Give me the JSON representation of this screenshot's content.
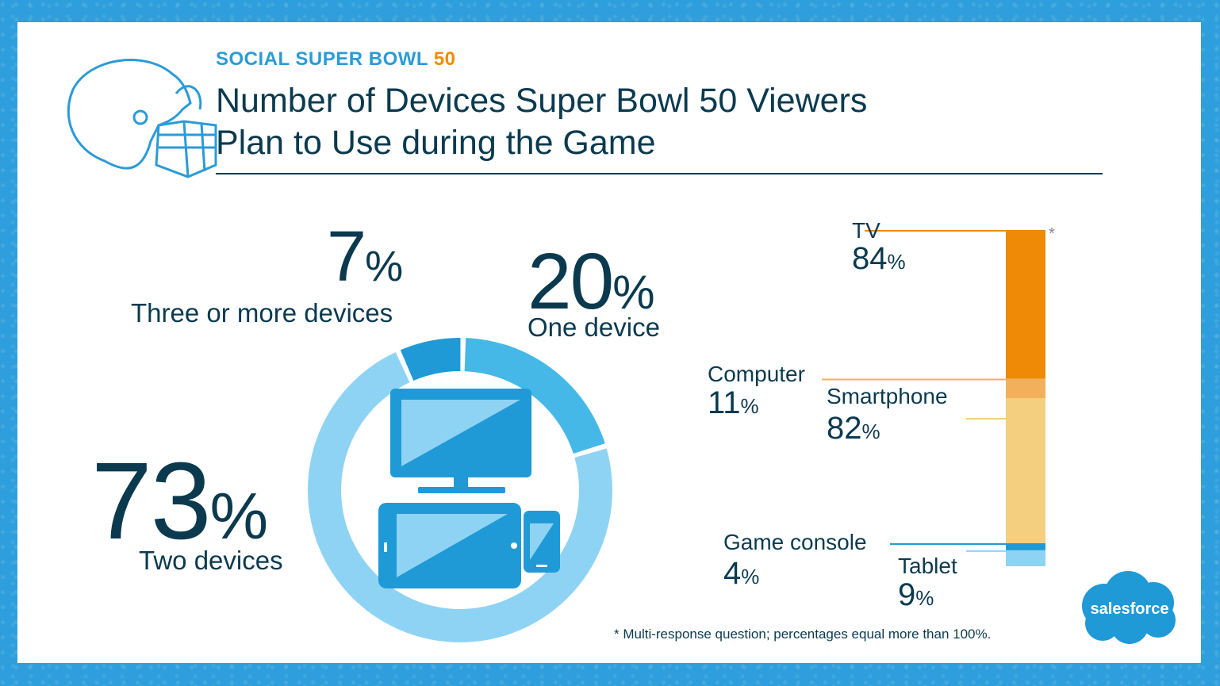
{
  "header": {
    "eyebrow": "SOCIAL SUPER BOWL",
    "eyebrow_num": "50",
    "title_line1": "Number of Devices Super Bowl 50 Viewers",
    "title_line2": "Plan to Use during the Game"
  },
  "colors": {
    "dark_text": "#0b3a4f",
    "blue_accent": "#2a9bd8",
    "orange_accent": "#f08c00"
  },
  "chart_data": [
    {
      "type": "pie",
      "variant": "donut",
      "categories": [
        "One device",
        "Two devices",
        "Three or more devices"
      ],
      "values": [
        20,
        73,
        7
      ],
      "display": [
        "20",
        "73",
        "7"
      ],
      "unit": "%",
      "slice_colors": [
        "#45b8e8",
        "#8fd3f4",
        "#1f9ad6"
      ]
    },
    {
      "type": "bar",
      "variant": "stacked-single",
      "categories": [
        "TV",
        "Computer",
        "Smartphone",
        "Game console",
        "Tablet"
      ],
      "values": [
        84,
        11,
        82,
        4,
        9
      ],
      "display": [
        "84",
        "11",
        "82",
        "4",
        "9"
      ],
      "unit": "%",
      "segment_colors": [
        "#ee8a05",
        "#f2b05a",
        "#f4cf80",
        "#1f9ad6",
        "#8fd3f4"
      ],
      "leader_colors": [
        "#ee8a05",
        "#f2b05a",
        "#f4cf80",
        "#1f9ad6",
        "#8fd3f4"
      ],
      "asterisk": "*"
    }
  ],
  "footnote": "* Multi-response question; percentages equal more than 100%.",
  "logo": {
    "text": "salesforce"
  },
  "pct_symbol": "%"
}
